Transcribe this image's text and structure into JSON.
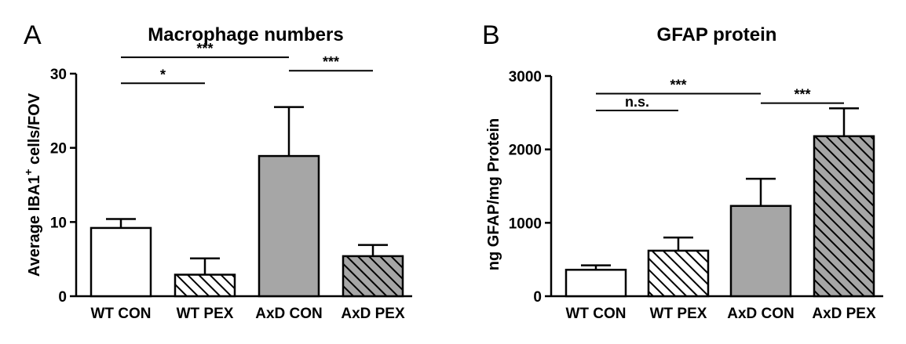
{
  "chart_data": [
    {
      "type": "bar",
      "panel_letter": "A",
      "title": "Macrophage numbers",
      "ylabel": "Average IBA1+ cells/FOV",
      "ylabel_parts": [
        "Average IBA1",
        "+",
        " cells/FOV"
      ],
      "ylim": [
        0,
        30
      ],
      "yticks": [
        0,
        10,
        20,
        30
      ],
      "categories": [
        "WT CON",
        "WT PEX",
        "AxD CON",
        "AxD PEX"
      ],
      "values": [
        9.2,
        2.9,
        18.9,
        5.4
      ],
      "errors": [
        1.2,
        2.2,
        6.6,
        1.5
      ],
      "fills": [
        "white",
        "white-hatch",
        "gray",
        "gray-hatch"
      ],
      "significance": [
        {
          "from": 0,
          "to": 2,
          "label": "***",
          "y": 32.2
        },
        {
          "from": 0,
          "to": 1,
          "label": "*",
          "y": 28.7
        },
        {
          "from": 2,
          "to": 3,
          "label": "***",
          "y": 30.4
        }
      ],
      "grid": false,
      "legend": "none"
    },
    {
      "type": "bar",
      "panel_letter": "B",
      "title": "GFAP protein",
      "ylabel": "ng GFAP/mg Protein",
      "ylim": [
        0,
        3000
      ],
      "yticks": [
        0,
        1000,
        2000,
        3000
      ],
      "categories": [
        "WT CON",
        "WT PEX",
        "AxD CON",
        "AxD PEX"
      ],
      "values": [
        360,
        620,
        1230,
        2180
      ],
      "errors": [
        60,
        180,
        370,
        380
      ],
      "fills": [
        "white",
        "white-hatch",
        "gray",
        "gray-hatch"
      ],
      "significance": [
        {
          "from": 0,
          "to": 2,
          "label": "***",
          "y": 2760
        },
        {
          "from": 0,
          "to": 1,
          "label": "n.s.",
          "y": 2530
        },
        {
          "from": 2,
          "to": 3,
          "label": "***",
          "y": 2630
        }
      ],
      "grid": false,
      "legend": "none"
    }
  ],
  "colors": {
    "gray_fill": "#a6a6a6",
    "white_fill": "#ffffff",
    "stroke": "#000000"
  }
}
